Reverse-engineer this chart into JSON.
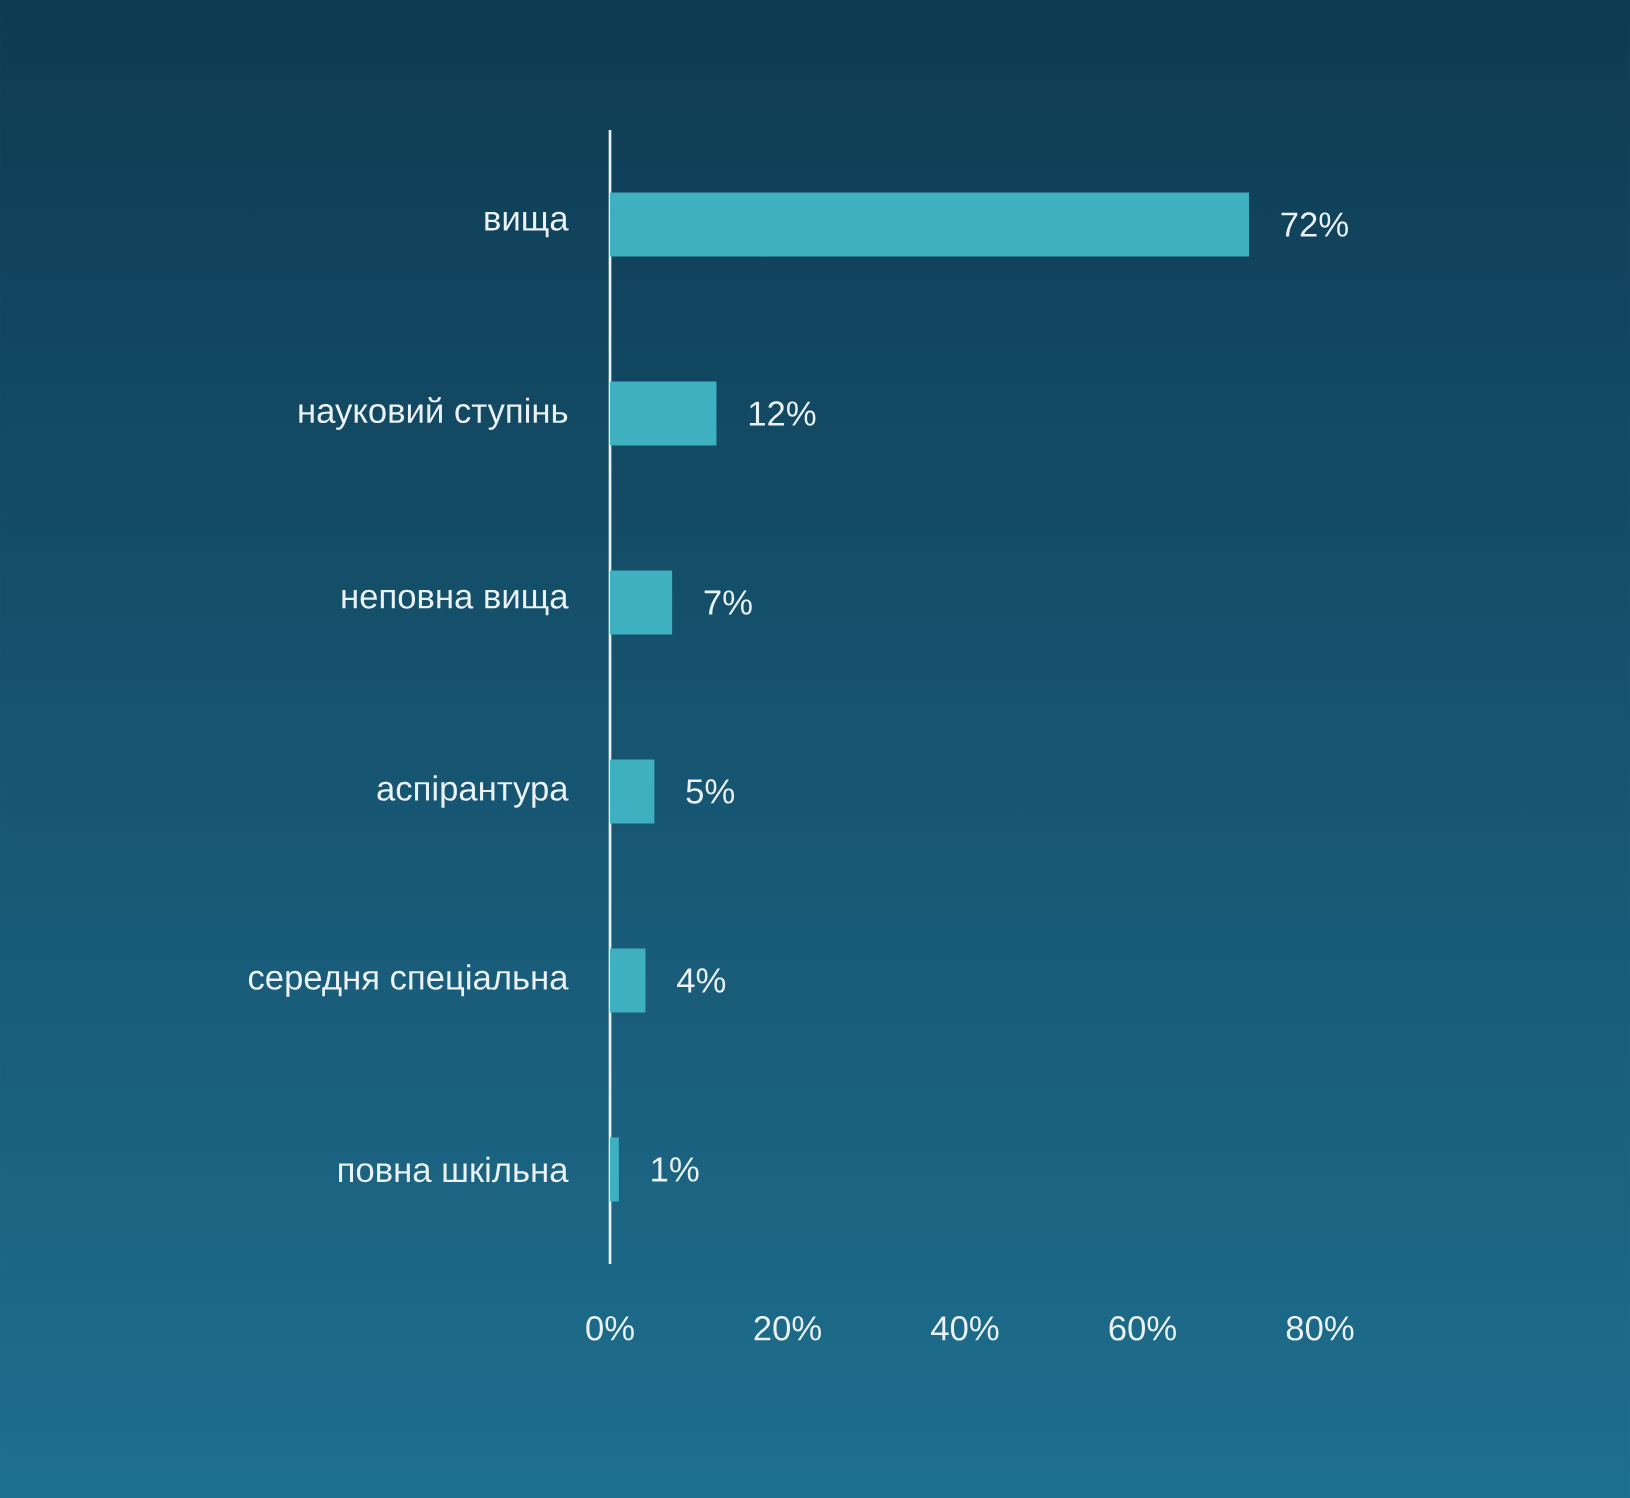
{
  "chart_data": {
    "type": "bar",
    "orientation": "horizontal",
    "categories": [
      "вища",
      "науковий ступінь",
      "неповна вища",
      "аспірантура",
      "середня спеціальна",
      "повна шкільна"
    ],
    "values": [
      72,
      12,
      7,
      5,
      4,
      1
    ],
    "value_labels": [
      "72%",
      "12%",
      "7%",
      "5%",
      "4%",
      "1%"
    ],
    "color": "#3fb0bf",
    "xlim": [
      0,
      80
    ],
    "xticks": [
      {
        "value": 0,
        "label": "0%"
      },
      {
        "value": 20,
        "label": "20%"
      },
      {
        "value": 40,
        "label": "40%"
      },
      {
        "value": 60,
        "label": "60%"
      },
      {
        "value": 80,
        "label": "80%"
      }
    ],
    "grid": false
  }
}
